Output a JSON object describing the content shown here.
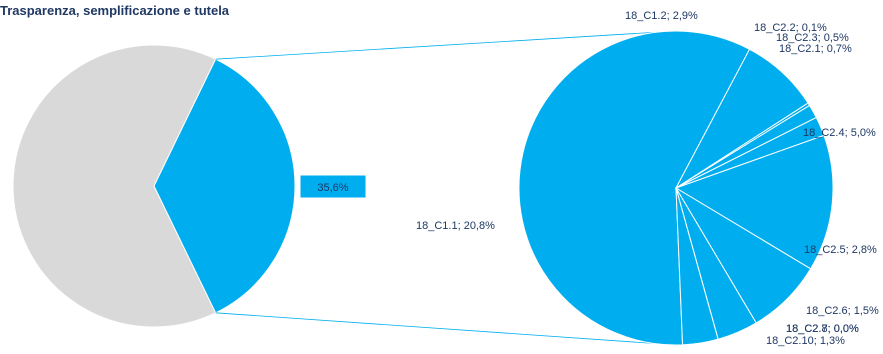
{
  "chart_data": {
    "type": "pie",
    "title": "Trasparenza, semplificazione e tutela",
    "colors": {
      "highlight": "#00AEEF",
      "rest": "#D9D9D9",
      "text": "#1F3864",
      "connector": "#00AEEF"
    },
    "main_pie": {
      "slices": [
        {
          "label": "",
          "value": 64.4,
          "color": "#D9D9D9"
        },
        {
          "label": "35,6%",
          "value": 35.6,
          "color": "#00AEEF"
        }
      ]
    },
    "breakdown_pie": {
      "slices": [
        {
          "label": "18_C1.1; 20,8%",
          "value": 20.8
        },
        {
          "label": "18_C1.2; 2,9%",
          "value": 2.9
        },
        {
          "label": "18_C2.2; 0,1%",
          "value": 0.1
        },
        {
          "label": "18_C2.3; 0,5%",
          "value": 0.5
        },
        {
          "label": "18_C2.1; 0,7%",
          "value": 0.7
        },
        {
          "label": "18_C2.4; 5,0%",
          "value": 5.0
        },
        {
          "label": "18_C2.5; 2,8%",
          "value": 2.8
        },
        {
          "label": "18_C2.6; 1,5%",
          "value": 1.5
        },
        {
          "label": "18_C2.7; 0,0%",
          "value": 0.0
        },
        {
          "label": "18_C2.8; 0,0%",
          "value": 0.0
        },
        {
          "label": "18_C2.10; 1,3%",
          "value": 1.3
        }
      ]
    }
  }
}
